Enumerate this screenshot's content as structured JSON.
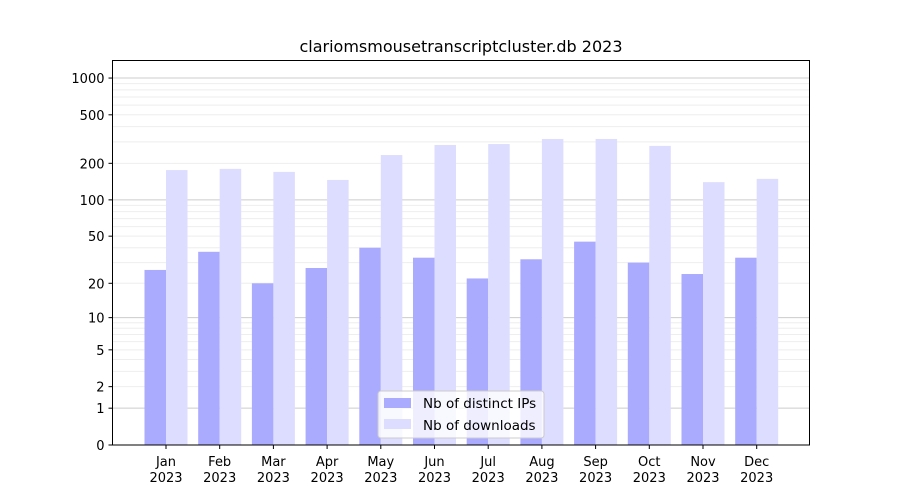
{
  "chart_data": {
    "type": "bar",
    "title": "clariomsmousetranscriptcluster.db 2023",
    "xlabel": "",
    "ylabel": "",
    "yscale": "log(1+y)",
    "ylim": [
      0,
      1300
    ],
    "yticks": [
      0,
      1,
      2,
      5,
      10,
      20,
      50,
      100,
      200,
      500,
      1000
    ],
    "grid": true,
    "legend_position": "bottom-center",
    "categories": [
      "Jan\n2023",
      "Feb\n2023",
      "Mar\n2023",
      "Apr\n2023",
      "May\n2023",
      "Jun\n2023",
      "Jul\n2023",
      "Aug\n2023",
      "Sep\n2023",
      "Oct\n2023",
      "Nov\n2023",
      "Dec\n2023"
    ],
    "series": [
      {
        "name": "Nb of distinct IPs",
        "color": "#aaaaff",
        "values": [
          26,
          37,
          20,
          27,
          40,
          33,
          22,
          32,
          45,
          30,
          24,
          33
        ]
      },
      {
        "name": "Nb of downloads",
        "color": "#ddddff",
        "values": [
          176,
          180,
          170,
          146,
          234,
          283,
          288,
          317,
          317,
          278,
          140,
          149
        ]
      }
    ]
  }
}
